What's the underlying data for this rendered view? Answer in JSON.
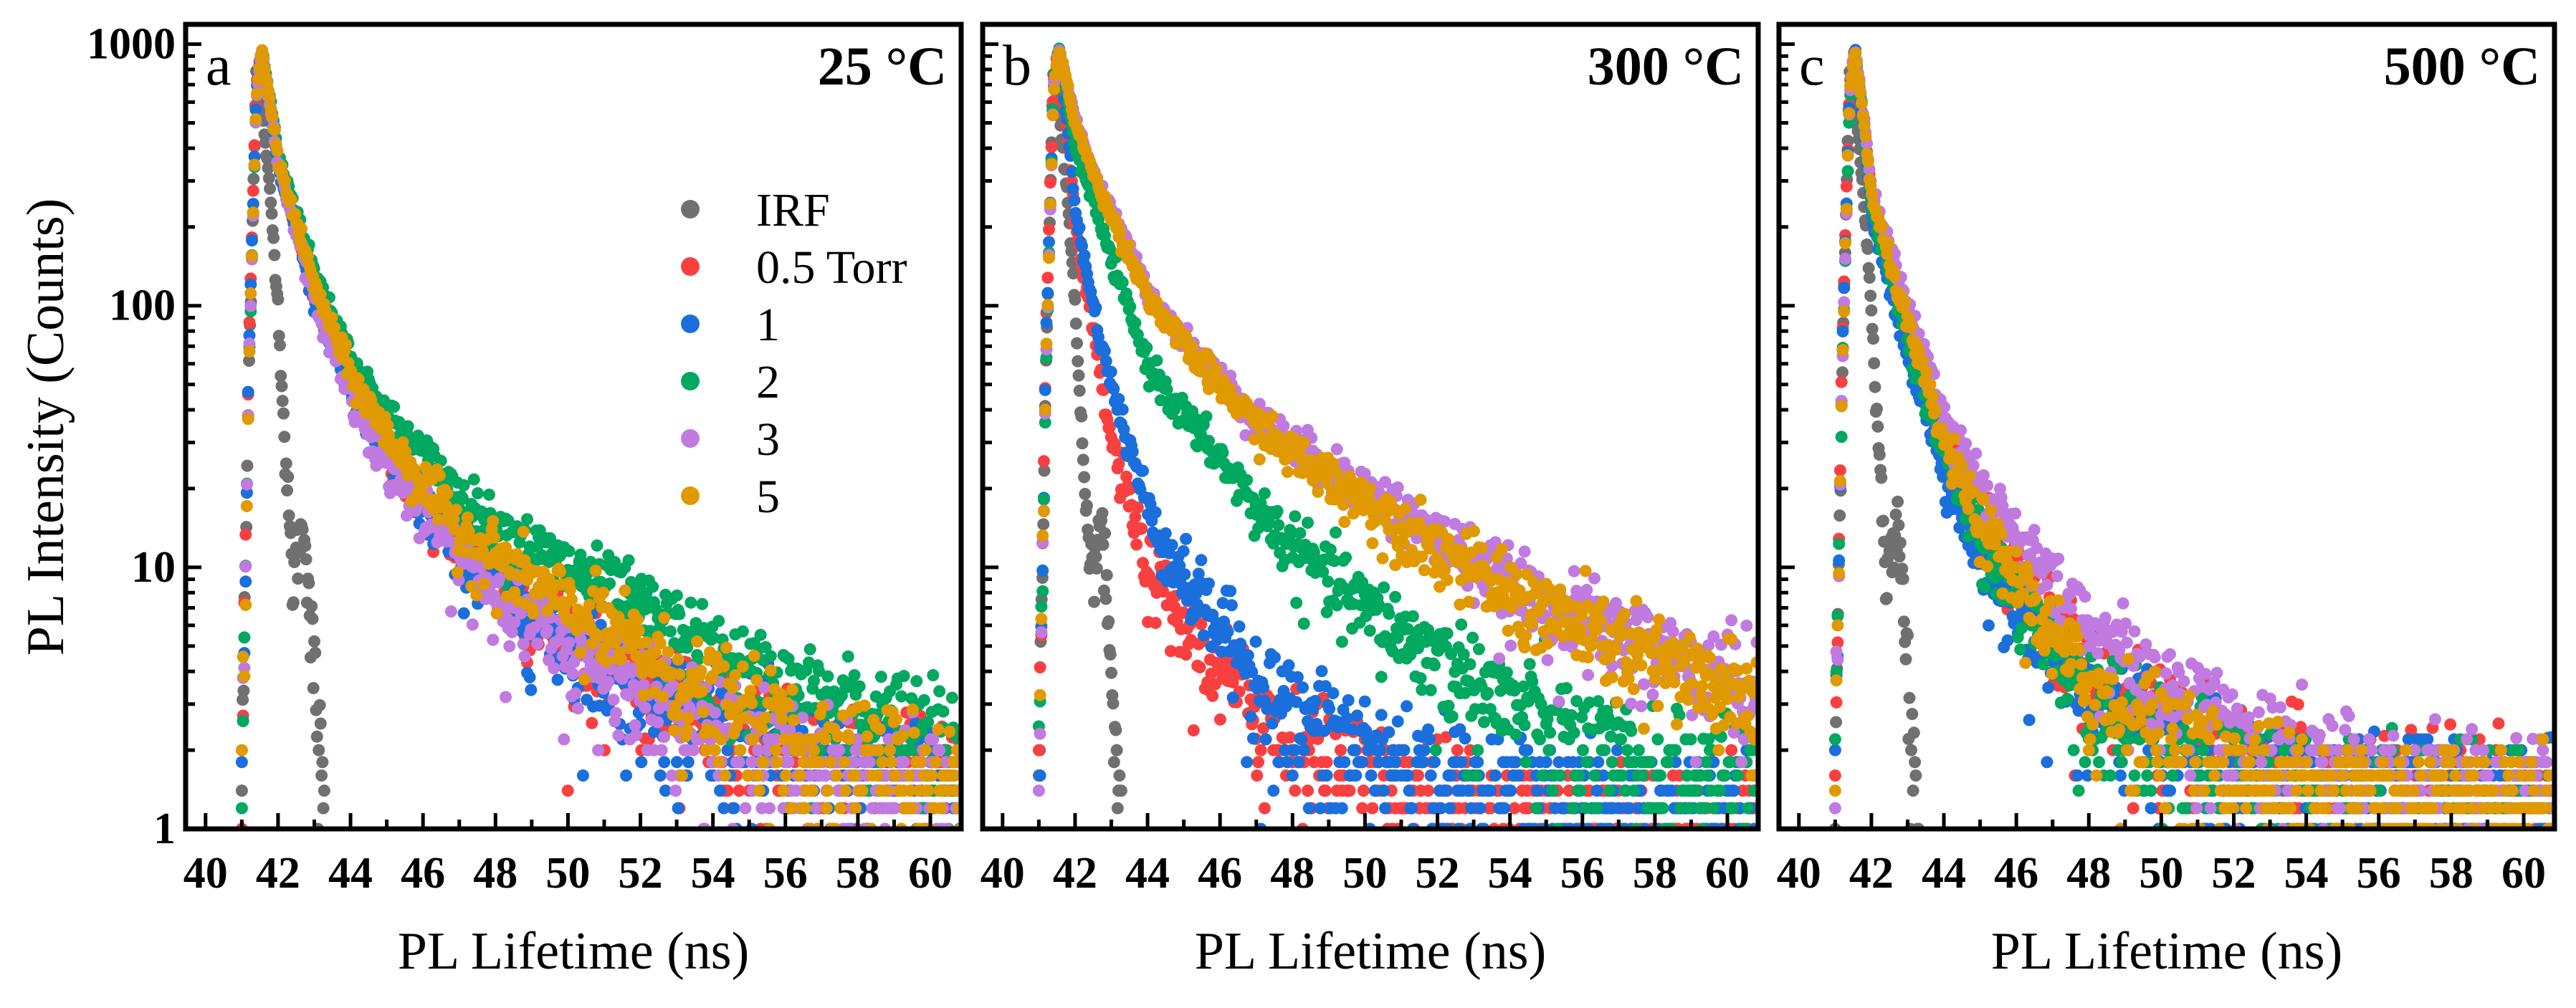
{
  "chart_data": {
    "type": "scatter",
    "ylabel": "PL Intensity (Counts)",
    "yscale": "log",
    "ylim": [
      1,
      1190
    ],
    "xlim": [
      39.45,
      60.85
    ],
    "y_ticks": [
      "1",
      "10",
      "100",
      "1000"
    ],
    "y_tick_values": [
      1,
      10,
      100,
      1000
    ],
    "x_ticks": [
      "40",
      "42",
      "44",
      "46",
      "48",
      "50",
      "52",
      "54",
      "56",
      "58",
      "60"
    ],
    "x_tick_values": [
      40,
      42,
      44,
      46,
      48,
      50,
      52,
      54,
      56,
      58,
      60
    ],
    "legend": {
      "placement": "upper-right of panel a",
      "entries": [
        {
          "label": "IRF",
          "color": "#707070"
        },
        {
          "label": "0.5 Torr",
          "color": "#f84040"
        },
        {
          "label": "1",
          "color": "#1a6fdc"
        },
        {
          "label": "2",
          "color": "#00a860"
        },
        {
          "label": "3",
          "color": "#c07ae0"
        },
        {
          "label": "5",
          "color": "#e09a00"
        }
      ]
    },
    "irf": {
      "x": [
        41.0,
        41.2,
        41.4,
        41.6,
        41.8,
        42.0,
        42.2,
        42.4,
        42.6,
        42.75,
        42.9,
        43.05,
        43.2,
        43.3
      ],
      "y": [
        1.5,
        60,
        800,
        500,
        250,
        100,
        27,
        9,
        13,
        14,
        6,
        3,
        1.5,
        1.1
      ]
    },
    "x": [
      41.0,
      41.2,
      41.4,
      41.55,
      41.8,
      42.0,
      42.5,
      43.0,
      44.0,
      45.0,
      46.0,
      47.0,
      48.0,
      50.0,
      52.0,
      54.0,
      56.0,
      58.0,
      60.0,
      60.85
    ],
    "panels": [
      {
        "letter": "a",
        "title": "25 °C",
        "xlabel": "PL Lifetime (ns)",
        "series": [
          {
            "name": "0.5 Torr",
            "values": [
              1.5,
              80,
              700,
              950,
              550,
              350,
              200,
              110,
              50,
              28,
              18,
              12,
              9,
              5.5,
              3.8,
              2.5,
              1.9,
              1.6,
              1.5,
              1.4
            ]
          },
          {
            "name": "1",
            "values": [
              1.5,
              70,
              650,
              950,
              540,
              340,
              195,
              105,
              48,
              27,
              17,
              11.5,
              8.5,
              5.2,
              3.6,
              2.5,
              1.9,
              1.6,
              1.5,
              1.4
            ]
          },
          {
            "name": "2",
            "values": [
              1.5,
              60,
              600,
              950,
              600,
              380,
              230,
              135,
              65,
              38,
              27,
              19,
              14,
              10,
              7,
              4.5,
              3.3,
              2.7,
              2.2,
              2.0
            ]
          },
          {
            "name": "3",
            "values": [
              1.5,
              60,
              600,
              950,
              560,
              350,
              195,
              105,
              45,
              25,
              16,
              11,
              8,
              5,
              3.5,
              2.4,
              1.8,
              1.5,
              1.4,
              1.3
            ]
          },
          {
            "name": "5",
            "values": [
              1.5,
              60,
              620,
              950,
              580,
              360,
              210,
              120,
              55,
              32,
              21,
              14,
              11,
              7,
              4.8,
              3,
              2.2,
              1.8,
              1.6,
              1.5
            ]
          }
        ]
      },
      {
        "letter": "b",
        "title": "300 °C",
        "xlabel": "PL Lifetime (ns)",
        "series": [
          {
            "name": "0.5 Torr",
            "values": [
              1.5,
              80,
              700,
              950,
              450,
              200,
              80,
              30,
              10,
              6,
              4,
              3,
              2,
              1.5,
              1.3,
              1.2,
              1.1,
              1.1,
              1.0,
              1.0
            ]
          },
          {
            "name": "1",
            "values": [
              1.5,
              70,
              650,
              950,
              480,
              230,
              100,
              50,
              17,
              9,
              6,
              3.8,
              2.6,
              2,
              1.5,
              1.3,
              1.2,
              1.1,
              1.1,
              1.0
            ]
          },
          {
            "name": "2",
            "values": [
              1.5,
              60,
              650,
              950,
              620,
              400,
              250,
              150,
              60,
              38,
              26,
              17,
              12,
              7,
              4.5,
              3,
              2,
              1.6,
              1.5,
              1.4
            ]
          },
          {
            "name": "3",
            "values": [
              1.5,
              60,
              650,
              950,
              700,
              520,
              330,
              230,
              115,
              75,
              53,
              38,
              29,
              20,
              13,
              8.5,
              6.3,
              4.8,
              3.8,
              3.6
            ]
          },
          {
            "name": "5",
            "values": [
              1.5,
              60,
              650,
              950,
              690,
              500,
              320,
              220,
              110,
              70,
              50,
              35,
              27,
              18,
              12,
              7.8,
              5.8,
              4.3,
              3.3,
              3.0
            ]
          }
        ]
      },
      {
        "letter": "c",
        "title": "500 °C",
        "xlabel": "PL Lifetime (ns)",
        "series": [
          {
            "name": "0.5 Torr",
            "values": [
              1.5,
              80,
              700,
              950,
              500,
              260,
              150,
              85,
              32,
              16,
              9.5,
              6,
              4,
              2.5,
              1.8,
              1.5,
              1.4,
              1.4,
              1.3,
              1.2
            ]
          },
          {
            "name": "1",
            "values": [
              1.5,
              70,
              650,
              950,
              450,
              220,
              120,
              65,
              24,
              11,
              7,
              4.5,
              3,
              2,
              1.5,
              1.4,
              1.3,
              1.3,
              1.2,
              1.2
            ]
          },
          {
            "name": "2",
            "values": [
              1.5,
              60,
              600,
              950,
              480,
              240,
              135,
              75,
              27,
              13,
              8,
              5,
              3.2,
              2.1,
              1.5,
              1.4,
              1.3,
              1.3,
              1.2,
              1.2
            ]
          },
          {
            "name": "3",
            "values": [
              1.5,
              60,
              650,
              950,
              520,
              280,
              170,
              100,
              40,
              21,
              13,
              8.5,
              6,
              3.6,
              2.2,
              1.7,
              1.5,
              1.4,
              1.3,
              1.2
            ]
          },
          {
            "name": "5",
            "values": [
              1.5,
              60,
              650,
              950,
              500,
              260,
              150,
              85,
              30,
              15,
              9,
              5.5,
              3.5,
              2.2,
              1.6,
              1.4,
              1.3,
              1.3,
              1.2,
              1.2
            ]
          }
        ]
      }
    ]
  }
}
